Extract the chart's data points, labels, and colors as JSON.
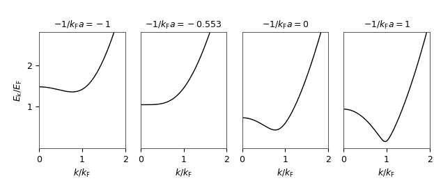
{
  "panels": [
    {
      "label": "$-1/k_{\\rm F}a = -1$",
      "mu_over_EF": 0.59,
      "Delta_over_EF": 1.36
    },
    {
      "label": "$-1/k_{\\rm F}a = -0.553$",
      "mu_over_EF": 0.0,
      "Delta_over_EF": 1.05
    },
    {
      "label": "$-1/k_{\\rm F}a = 0$",
      "mu_over_EF": 0.59,
      "Delta_over_EF": 0.44
    },
    {
      "label": "$-1/k_{\\rm F}a = 1$",
      "mu_over_EF": 0.93,
      "Delta_over_EF": 0.16
    }
  ],
  "xlim": [
    0,
    2
  ],
  "ylim": [
    0,
    2.8
  ],
  "yticks": [
    1,
    2
  ],
  "xticks": [
    0,
    1,
    2
  ],
  "xlabel": "$k / k_{\\rm F}$",
  "ylabel": "$E_{\\rm k} / E_{\\rm F}$",
  "linecolor": "black",
  "linewidth": 1.0,
  "background": "white",
  "fig_width": 6.23,
  "fig_height": 2.73,
  "dpi": 100
}
